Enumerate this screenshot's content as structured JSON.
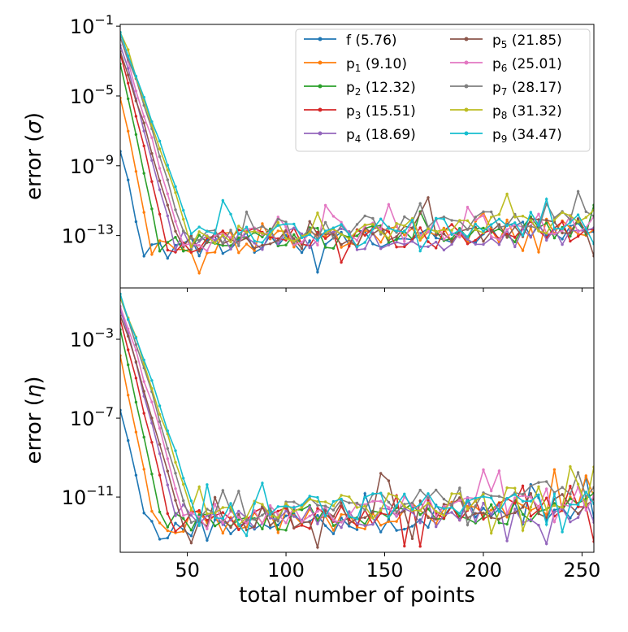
{
  "chart_data": {
    "type": "line",
    "scale": "log",
    "xlabel": "total number of points",
    "xlim": [
      16,
      256
    ],
    "x_ticks": [
      50,
      100,
      150,
      200,
      250
    ],
    "x_tick_labels": [
      "50",
      "100",
      "150",
      "200",
      "250"
    ],
    "colors": [
      "#1f77b4",
      "#ff7f0e",
      "#2ca02c",
      "#d62728",
      "#9467bd",
      "#8c564b",
      "#e377c2",
      "#7f7f7f",
      "#bcbd22",
      "#17becf"
    ],
    "legend": {
      "placement": "top-right",
      "entries": [
        {
          "name": "f",
          "sub": "",
          "value": "(5.76)"
        },
        {
          "name": "p",
          "sub": "1",
          "value": "(9.10)"
        },
        {
          "name": "p",
          "sub": "2",
          "value": "(12.32)"
        },
        {
          "name": "p",
          "sub": "3",
          "value": "(15.51)"
        },
        {
          "name": "p",
          "sub": "4",
          "value": "(18.69)"
        },
        {
          "name": "p",
          "sub": "5",
          "value": "(21.85)"
        },
        {
          "name": "p",
          "sub": "6",
          "value": "(25.01)"
        },
        {
          "name": "p",
          "sub": "7",
          "value": "(28.17)"
        },
        {
          "name": "p",
          "sub": "8",
          "value": "(31.32)"
        },
        {
          "name": "p",
          "sub": "9",
          "value": "(34.47)"
        }
      ]
    },
    "panels": [
      {
        "name": "sigma",
        "ylabel_prefix": "error (",
        "ylabel_symbol": "σ",
        "ylabel_suffix": ")",
        "ylim_log10": [
          -16.0,
          -0.9
        ],
        "y_ticks": [
          {
            "base": "10",
            "exp": "−1",
            "log10": -1
          },
          {
            "base": "10",
            "exp": "−5",
            "log10": -5
          },
          {
            "base": "10",
            "exp": "−9",
            "log10": -9
          },
          {
            "base": "10",
            "exp": "−13",
            "log10": -13
          }
        ],
        "converge_start": [
          -8.0,
          -5.0,
          -3.0,
          -2.5,
          -2.0,
          -2.3,
          -1.8,
          -1.5,
          -1.3,
          -1.5
        ],
        "converge_end": [
          28,
          32,
          36,
          40,
          44,
          46,
          48,
          50,
          52,
          54
        ],
        "converge_min": [
          -14.2,
          -14.0,
          -13.9,
          -13.9,
          -13.8,
          -13.7,
          -13.6,
          -13.6,
          -13.5,
          -13.5
        ],
        "floor_log10": [
          -13.6,
          -13.5,
          -13.4,
          -13.3,
          -13.2,
          -13.3,
          -13.2,
          -13.1,
          -13.1,
          -13.0
        ],
        "floor_slope_per_100": [
          0.5,
          0.5,
          0.4,
          0.3,
          0.0,
          0.4,
          0.5,
          0.6,
          0.5,
          0.4
        ]
      },
      {
        "name": "eta",
        "ylabel_prefix": "error (",
        "ylabel_symbol": "η",
        "ylabel_suffix": ")",
        "ylim_log10": [
          -13.8,
          -0.4
        ],
        "y_ticks": [
          {
            "base": "10",
            "exp": "−3",
            "log10": -3
          },
          {
            "base": "10",
            "exp": "−7",
            "log10": -7
          },
          {
            "base": "10",
            "exp": "−11",
            "log10": -11
          }
        ],
        "converge_start": [
          -6.5,
          -4.0,
          -2.5,
          -2.0,
          -1.5,
          -1.8,
          -1.2,
          -0.9,
          -0.7,
          -0.8
        ],
        "converge_end": [
          30,
          34,
          38,
          42,
          46,
          48,
          50,
          52,
          54,
          56
        ],
        "converge_min": [
          -12.9,
          -12.8,
          -12.7,
          -12.6,
          -12.6,
          -12.5,
          -12.5,
          -12.4,
          -12.4,
          -12.4
        ],
        "floor_log10": [
          -12.5,
          -12.3,
          -12.2,
          -12.1,
          -12.0,
          -12.1,
          -12.0,
          -11.9,
          -11.9,
          -11.8
        ],
        "floor_slope_per_100": [
          0.4,
          0.4,
          0.3,
          0.3,
          0.1,
          0.4,
          0.5,
          0.6,
          0.5,
          0.4
        ]
      }
    ]
  }
}
